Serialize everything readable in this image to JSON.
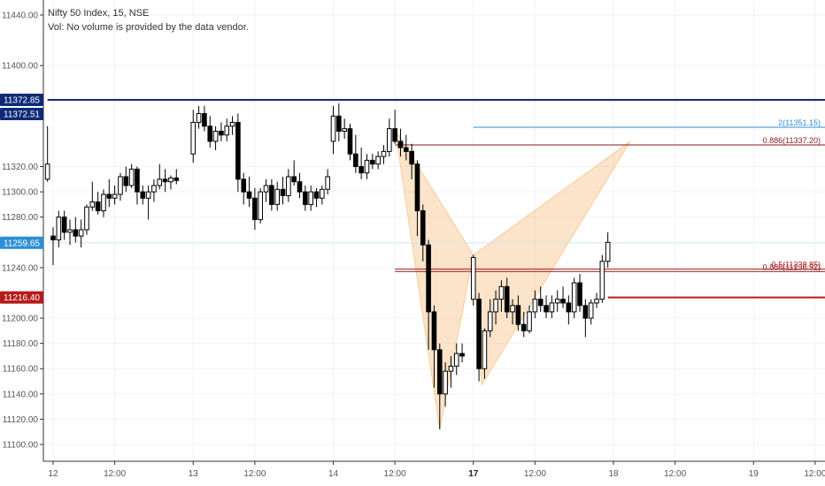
{
  "header": {
    "title": "Nifty 50 Index, 15, NSE",
    "volume_note": "Vol: No volume is provided by the data vendor."
  },
  "colors": {
    "up": "#ffffff",
    "down": "#000000",
    "pattern_fill": "#f7c488",
    "blue_line": "#0f2a78",
    "red_line": "#b51b1b",
    "light_blue": "#2d8fd5",
    "fib_line": "#8b1a1a",
    "grid": "#f0f3fa"
  },
  "chart_data": {
    "type": "candlestick",
    "y_axis": {
      "ticks": [
        "11440.00",
        "11400.00",
        "11320.00",
        "11300.00",
        "11280.00",
        "11240.00",
        "11200.00",
        "11180.00",
        "11160.00",
        "11140.00",
        "11120.00",
        "11100.00"
      ],
      "range": [
        11088,
        11446
      ]
    },
    "x_axis": {
      "labels": [
        {
          "text": "12",
          "bold": false,
          "t": 0
        },
        {
          "text": "12:00",
          "bold": false,
          "t": 11
        },
        {
          "text": "13",
          "bold": false,
          "t": 25
        },
        {
          "text": "12:00",
          "bold": false,
          "t": 36
        },
        {
          "text": "14",
          "bold": false,
          "t": 50
        },
        {
          "text": "12:00",
          "bold": false,
          "t": 61
        },
        {
          "text": "17",
          "bold": true,
          "t": 75
        },
        {
          "text": "12:00",
          "bold": false,
          "t": 86
        },
        {
          "text": "18",
          "bold": false,
          "t": 100
        },
        {
          "text": "12:00",
          "bold": false,
          "t": 111
        },
        {
          "text": "19",
          "bold": false,
          "t": 125
        },
        {
          "text": "12:00",
          "bold": false,
          "t": 136
        }
      ]
    },
    "price_badges": [
      {
        "value": 11372.85,
        "text": "11372.85",
        "color": "#0f2a78"
      },
      {
        "value": 11372.51,
        "text": "11372.51",
        "color": "#0f2a78"
      },
      {
        "value": 11259.65,
        "text": "11259.65",
        "color": "#2d8fd5"
      },
      {
        "value": 11216.4,
        "text": "11216.40",
        "color": "#b51b1b"
      }
    ],
    "horizontal_lines": [
      {
        "value": 11372.85,
        "t_from": -1,
        "t_to": 140,
        "color": "#0f2a78",
        "width": 2
      },
      {
        "value": 11259.65,
        "t_from": -1,
        "t_to": 140,
        "color": "#cfe6f7",
        "width": 1
      },
      {
        "value": 11216.4,
        "t_from": 99,
        "t_to": 140,
        "color": "#b51b1b",
        "width": 2
      }
    ],
    "fib_levels": [
      {
        "label": "2(11351.15)",
        "value": 11351.15,
        "t_from": 75,
        "t_to": 140,
        "color": "#2d8fd5"
      },
      {
        "label": "0.886(11337.20)",
        "value": 11337.2,
        "t_from": 61,
        "t_to": 140,
        "color": "#8b1a1a"
      },
      {
        "label": "0.5(11238.85)",
        "value": 11238.85,
        "t_from": 61,
        "t_to": 140,
        "color": "#b51b1b"
      },
      {
        "label": "0.886(11236.92)",
        "value": 11236.92,
        "t_from": 61,
        "t_to": 140,
        "color": "#8b1a1a"
      }
    ],
    "harmonic_pattern": {
      "points": [
        {
          "t": 61,
          "v": 11350
        },
        {
          "t": 69,
          "v": 11112
        },
        {
          "t": 75,
          "v": 11250
        },
        {
          "t": 76.5,
          "v": 11147
        },
        {
          "t": 103,
          "v": 11340
        }
      ]
    },
    "candles": [
      {
        "t": -1,
        "o": 11310,
        "h": 11352,
        "l": 11308,
        "c": 11322
      },
      {
        "t": 0,
        "o": 11265,
        "h": 11272,
        "l": 11242,
        "c": 11262
      },
      {
        "t": 1,
        "o": 11262,
        "h": 11285,
        "l": 11256,
        "c": 11280
      },
      {
        "t": 2,
        "o": 11280,
        "h": 11285,
        "l": 11262,
        "c": 11268
      },
      {
        "t": 3,
        "o": 11268,
        "h": 11278,
        "l": 11258,
        "c": 11270
      },
      {
        "t": 4,
        "o": 11270,
        "h": 11280,
        "l": 11260,
        "c": 11265
      },
      {
        "t": 5,
        "o": 11265,
        "h": 11278,
        "l": 11256,
        "c": 11270
      },
      {
        "t": 6,
        "o": 11270,
        "h": 11290,
        "l": 11266,
        "c": 11288
      },
      {
        "t": 7,
        "o": 11288,
        "h": 11308,
        "l": 11285,
        "c": 11292
      },
      {
        "t": 8,
        "o": 11292,
        "h": 11300,
        "l": 11282,
        "c": 11285
      },
      {
        "t": 9,
        "o": 11285,
        "h": 11302,
        "l": 11280,
        "c": 11298
      },
      {
        "t": 10,
        "o": 11298,
        "h": 11310,
        "l": 11288,
        "c": 11295
      },
      {
        "t": 11,
        "o": 11295,
        "h": 11305,
        "l": 11290,
        "c": 11298
      },
      {
        "t": 12,
        "o": 11298,
        "h": 11315,
        "l": 11293,
        "c": 11312
      },
      {
        "t": 13,
        "o": 11312,
        "h": 11320,
        "l": 11300,
        "c": 11305
      },
      {
        "t": 14,
        "o": 11305,
        "h": 11322,
        "l": 11303,
        "c": 11318
      },
      {
        "t": 15,
        "o": 11318,
        "h": 11320,
        "l": 11290,
        "c": 11300
      },
      {
        "t": 16,
        "o": 11300,
        "h": 11305,
        "l": 11290,
        "c": 11295
      },
      {
        "t": 17,
        "o": 11295,
        "h": 11305,
        "l": 11278,
        "c": 11300
      },
      {
        "t": 18,
        "o": 11300,
        "h": 11310,
        "l": 11292,
        "c": 11305
      },
      {
        "t": 19,
        "o": 11305,
        "h": 11322,
        "l": 11302,
        "c": 11310
      },
      {
        "t": 20,
        "o": 11310,
        "h": 11318,
        "l": 11300,
        "c": 11308
      },
      {
        "t": 21,
        "o": 11308,
        "h": 11313,
        "l": 11302,
        "c": 11311
      },
      {
        "t": 22,
        "o": 11311,
        "h": 11318,
        "l": 11306,
        "c": 11309
      },
      {
        "t": 25,
        "o": 11330,
        "h": 11365,
        "l": 11323,
        "c": 11355
      },
      {
        "t": 26,
        "o": 11355,
        "h": 11368,
        "l": 11350,
        "c": 11362
      },
      {
        "t": 27,
        "o": 11362,
        "h": 11368,
        "l": 11348,
        "c": 11352
      },
      {
        "t": 28,
        "o": 11352,
        "h": 11360,
        "l": 11335,
        "c": 11340
      },
      {
        "t": 29,
        "o": 11340,
        "h": 11352,
        "l": 11333,
        "c": 11348
      },
      {
        "t": 30,
        "o": 11348,
        "h": 11355,
        "l": 11340,
        "c": 11345
      },
      {
        "t": 31,
        "o": 11345,
        "h": 11358,
        "l": 11340,
        "c": 11352
      },
      {
        "t": 32,
        "o": 11352,
        "h": 11360,
        "l": 11345,
        "c": 11355
      },
      {
        "t": 33,
        "o": 11355,
        "h": 11362,
        "l": 11300,
        "c": 11310
      },
      {
        "t": 34,
        "o": 11310,
        "h": 11315,
        "l": 11290,
        "c": 11300
      },
      {
        "t": 35,
        "o": 11300,
        "h": 11312,
        "l": 11288,
        "c": 11295
      },
      {
        "t": 36,
        "o": 11295,
        "h": 11303,
        "l": 11270,
        "c": 11278
      },
      {
        "t": 37,
        "o": 11278,
        "h": 11303,
        "l": 11275,
        "c": 11300
      },
      {
        "t": 38,
        "o": 11300,
        "h": 11310,
        "l": 11292,
        "c": 11305
      },
      {
        "t": 39,
        "o": 11305,
        "h": 11310,
        "l": 11285,
        "c": 11290
      },
      {
        "t": 40,
        "o": 11290,
        "h": 11308,
        "l": 11285,
        "c": 11302
      },
      {
        "t": 41,
        "o": 11302,
        "h": 11312,
        "l": 11290,
        "c": 11297
      },
      {
        "t": 42,
        "o": 11297,
        "h": 11318,
        "l": 11292,
        "c": 11312
      },
      {
        "t": 43,
        "o": 11312,
        "h": 11325,
        "l": 11305,
        "c": 11308
      },
      {
        "t": 44,
        "o": 11308,
        "h": 11315,
        "l": 11295,
        "c": 11300
      },
      {
        "t": 45,
        "o": 11300,
        "h": 11305,
        "l": 11285,
        "c": 11290
      },
      {
        "t": 46,
        "o": 11290,
        "h": 11305,
        "l": 11285,
        "c": 11300
      },
      {
        "t": 47,
        "o": 11300,
        "h": 11303,
        "l": 11288,
        "c": 11295
      },
      {
        "t": 48,
        "o": 11295,
        "h": 11305,
        "l": 11290,
        "c": 11302
      },
      {
        "t": 49,
        "o": 11302,
        "h": 11318,
        "l": 11298,
        "c": 11312
      },
      {
        "t": 50,
        "o": 11340,
        "h": 11368,
        "l": 11330,
        "c": 11360
      },
      {
        "t": 51,
        "o": 11360,
        "h": 11370,
        "l": 11340,
        "c": 11348
      },
      {
        "t": 52,
        "o": 11348,
        "h": 11358,
        "l": 11342,
        "c": 11350
      },
      {
        "t": 53,
        "o": 11350,
        "h": 11354,
        "l": 11325,
        "c": 11330
      },
      {
        "t": 54,
        "o": 11330,
        "h": 11345,
        "l": 11315,
        "c": 11320
      },
      {
        "t": 55,
        "o": 11320,
        "h": 11335,
        "l": 11310,
        "c": 11315
      },
      {
        "t": 56,
        "o": 11315,
        "h": 11330,
        "l": 11310,
        "c": 11325
      },
      {
        "t": 57,
        "o": 11325,
        "h": 11330,
        "l": 11318,
        "c": 11322
      },
      {
        "t": 58,
        "o": 11322,
        "h": 11332,
        "l": 11318,
        "c": 11328
      },
      {
        "t": 59,
        "o": 11328,
        "h": 11337,
        "l": 11322,
        "c": 11332
      },
      {
        "t": 60,
        "o": 11332,
        "h": 11358,
        "l": 11328,
        "c": 11350
      },
      {
        "t": 61,
        "o": 11350,
        "h": 11365,
        "l": 11338,
        "c": 11340
      },
      {
        "t": 62,
        "o": 11340,
        "h": 11350,
        "l": 11328,
        "c": 11335
      },
      {
        "t": 63,
        "o": 11335,
        "h": 11345,
        "l": 11325,
        "c": 11332
      },
      {
        "t": 64,
        "o": 11332,
        "h": 11338,
        "l": 11310,
        "c": 11322
      },
      {
        "t": 65,
        "o": 11322,
        "h": 11325,
        "l": 11265,
        "c": 11285
      },
      {
        "t": 66,
        "o": 11285,
        "h": 11290,
        "l": 11245,
        "c": 11258
      },
      {
        "t": 67,
        "o": 11258,
        "h": 11262,
        "l": 11175,
        "c": 11205
      },
      {
        "t": 68,
        "o": 11205,
        "h": 11210,
        "l": 11145,
        "c": 11175
      },
      {
        "t": 69,
        "o": 11175,
        "h": 11180,
        "l": 11112,
        "c": 11140
      },
      {
        "t": 70,
        "o": 11140,
        "h": 11165,
        "l": 11130,
        "c": 11158
      },
      {
        "t": 71,
        "o": 11158,
        "h": 11170,
        "l": 11145,
        "c": 11162
      },
      {
        "t": 72,
        "o": 11162,
        "h": 11180,
        "l": 11155,
        "c": 11172
      },
      {
        "t": 73,
        "o": 11172,
        "h": 11180,
        "l": 11165,
        "c": 11170
      },
      {
        "t": 75,
        "o": 11215,
        "h": 11250,
        "l": 11210,
        "c": 11248
      },
      {
        "t": 76,
        "o": 11215,
        "h": 11220,
        "l": 11150,
        "c": 11160
      },
      {
        "t": 77,
        "o": 11160,
        "h": 11192,
        "l": 11152,
        "c": 11190
      },
      {
        "t": 78,
        "o": 11190,
        "h": 11215,
        "l": 11185,
        "c": 11205
      },
      {
        "t": 79,
        "o": 11205,
        "h": 11222,
        "l": 11195,
        "c": 11215
      },
      {
        "t": 80,
        "o": 11215,
        "h": 11230,
        "l": 11205,
        "c": 11225
      },
      {
        "t": 81,
        "o": 11225,
        "h": 11232,
        "l": 11200,
        "c": 11205
      },
      {
        "t": 82,
        "o": 11205,
        "h": 11215,
        "l": 11195,
        "c": 11210
      },
      {
        "t": 83,
        "o": 11210,
        "h": 11218,
        "l": 11190,
        "c": 11195
      },
      {
        "t": 84,
        "o": 11195,
        "h": 11205,
        "l": 11185,
        "c": 11190
      },
      {
        "t": 85,
        "o": 11190,
        "h": 11210,
        "l": 11188,
        "c": 11205
      },
      {
        "t": 86,
        "o": 11205,
        "h": 11222,
        "l": 11200,
        "c": 11215
      },
      {
        "t": 87,
        "o": 11215,
        "h": 11225,
        "l": 11205,
        "c": 11210
      },
      {
        "t": 88,
        "o": 11210,
        "h": 11218,
        "l": 11200,
        "c": 11205
      },
      {
        "t": 89,
        "o": 11205,
        "h": 11218,
        "l": 11200,
        "c": 11212
      },
      {
        "t": 90,
        "o": 11212,
        "h": 11222,
        "l": 11205,
        "c": 11215
      },
      {
        "t": 91,
        "o": 11215,
        "h": 11225,
        "l": 11208,
        "c": 11212
      },
      {
        "t": 92,
        "o": 11212,
        "h": 11218,
        "l": 11195,
        "c": 11205
      },
      {
        "t": 93,
        "o": 11205,
        "h": 11232,
        "l": 11200,
        "c": 11228
      },
      {
        "t": 94,
        "o": 11228,
        "h": 11235,
        "l": 11205,
        "c": 11210
      },
      {
        "t": 95,
        "o": 11210,
        "h": 11215,
        "l": 11185,
        "c": 11200
      },
      {
        "t": 96,
        "o": 11200,
        "h": 11215,
        "l": 11195,
        "c": 11212
      },
      {
        "t": 97,
        "o": 11212,
        "h": 11220,
        "l": 11208,
        "c": 11215
      },
      {
        "t": 98,
        "o": 11215,
        "h": 11250,
        "l": 11212,
        "c": 11245
      },
      {
        "t": 99,
        "o": 11245,
        "h": 11268,
        "l": 11240,
        "c": 11260
      }
    ]
  }
}
